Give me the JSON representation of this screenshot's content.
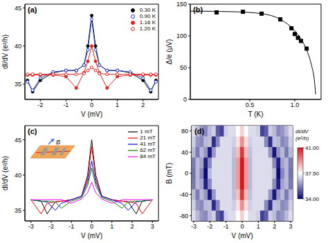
{
  "chart_data": [
    {
      "type": "line",
      "title": "(a)",
      "x_label": "V (mV)",
      "y_label": "dI/dV (e²/h)",
      "x": [
        -2.5,
        -2.3,
        -2,
        -1.5,
        -1,
        -0.6,
        -0.3,
        -0.15,
        0,
        0.15,
        0.3,
        0.6,
        1,
        1.5,
        2,
        2.3,
        2.5
      ],
      "xlim": [
        -2.6,
        2.6
      ],
      "xticks": [
        -2,
        -1,
        0,
        1,
        2
      ],
      "ylim": [
        33,
        45.5
      ],
      "yticks": [
        35,
        40,
        45
      ],
      "legend": "upper right",
      "series": [
        {
          "name": "0.30 K",
          "color": "#000000",
          "marker": "circle",
          "values": [
            35.5,
            34,
            35.5,
            36.5,
            36.8,
            36.8,
            37.5,
            40,
            44,
            40,
            37.5,
            36.8,
            36.8,
            36.5,
            35.5,
            34,
            35.5
          ]
        },
        {
          "name": "0.90 K",
          "color": "#1f3bd1",
          "marker": "circle_open",
          "values": [
            35.3,
            34.2,
            35.8,
            36.6,
            36.8,
            36.8,
            37.5,
            39.5,
            43.5,
            39.5,
            37.5,
            36.8,
            36.8,
            36.6,
            35.8,
            34.2,
            35.3
          ]
        },
        {
          "name": "1.16 K",
          "color": "#e3211c",
          "marker": "circle",
          "values": [
            36.2,
            36.2,
            36.2,
            36.2,
            36,
            34.5,
            36.5,
            38,
            40,
            38,
            36.5,
            34.5,
            36,
            36.2,
            36.2,
            36.2,
            36.2
          ]
        },
        {
          "name": "1.20 K",
          "color": "#e3211c",
          "marker": "circle_open",
          "values": [
            36.3,
            36.3,
            36.3,
            36.3,
            36.3,
            36.3,
            36.4,
            36.8,
            37.2,
            36.8,
            36.4,
            36.3,
            36.3,
            36.3,
            36.3,
            36.3,
            36.3
          ]
        }
      ]
    },
    {
      "type": "scatter",
      "title": "(b)",
      "x_label": "T (K)",
      "y_label": "Δ/e (μV)",
      "log": "x",
      "xlim": [
        0.2,
        1.5
      ],
      "xticks": [
        0.5,
        {
          "value": 1,
          "label": "1.0"
        }
      ],
      "ylim": [
        0,
        150
      ],
      "yticks": [
        0,
        50,
        100,
        150
      ],
      "series": [
        {
          "type": "scatter",
          "marker": "square",
          "color": "#000000",
          "x": [
            0.3,
            0.45,
            0.6,
            0.8,
            0.95,
            1.0,
            1.05,
            1.1,
            1.2
          ],
          "values": [
            137,
            138,
            135,
            126,
            112,
            103,
            97,
            92,
            80
          ]
        },
        {
          "type": "line",
          "line_style": "solid",
          "color": "#000000",
          "x": [
            0.2,
            0.4,
            0.6,
            0.8,
            1.0,
            1.1,
            1.2,
            1.3,
            1.35,
            1.38
          ],
          "values": [
            139,
            138,
            135,
            126,
            108,
            95,
            78,
            52,
            32,
            8
          ]
        }
      ]
    },
    {
      "type": "line",
      "title": "(c)",
      "x_label": "V (mV)",
      "y_label": "dI/dV (e²/h)",
      "annotations": [
        "B"
      ],
      "x": [
        -3,
        -2.5,
        -2.2,
        -1.8,
        -1.5,
        -1,
        -0.5,
        -0.2,
        0,
        0.2,
        0.5,
        1,
        1.5,
        1.8,
        2.2,
        2.5,
        3
      ],
      "xlim": [
        -3.3,
        3.3
      ],
      "xticks": [
        -3,
        -2,
        -1,
        0,
        1,
        2,
        3
      ],
      "ylim": [
        33.5,
        47
      ],
      "yticks": [
        35,
        40,
        45
      ],
      "legend": "upper right",
      "series": [
        {
          "name": "1 mT",
          "color": "#000000",
          "line_style": "solid",
          "values": [
            36.5,
            36.3,
            34.5,
            36.2,
            36.3,
            36.5,
            37,
            40,
            45,
            40,
            37,
            36.5,
            36.3,
            36.2,
            34.5,
            36.3,
            36.5
          ]
        },
        {
          "name": "21 mT",
          "color": "#ff0000",
          "line_style": "solid",
          "values": [
            36.5,
            34.5,
            36,
            36.2,
            36.3,
            36.5,
            37,
            39.5,
            44,
            39.5,
            37,
            36.5,
            36.3,
            36.2,
            36,
            34.5,
            36.5
          ]
        },
        {
          "name": "41 mT",
          "color": "#0000ff",
          "line_style": "solid",
          "values": [
            36.5,
            36.3,
            36.2,
            35,
            36,
            36.5,
            37,
            39,
            42,
            39,
            37,
            36.5,
            36,
            35,
            36.2,
            36.3,
            36.5
          ]
        },
        {
          "name": "62 mT",
          "color": "#008000",
          "line_style": "solid",
          "values": [
            36.5,
            36.3,
            36.3,
            36.2,
            35.3,
            36.3,
            36.8,
            38.5,
            41,
            38.5,
            36.8,
            36.3,
            35.3,
            36.2,
            36.3,
            36.3,
            36.5
          ]
        },
        {
          "name": "84 mT",
          "color": "#ff00ff",
          "line_style": "solid",
          "values": [
            36.5,
            36.5,
            36.5,
            36.5,
            36.5,
            36,
            36.6,
            37.5,
            39,
            37.5,
            36.6,
            36,
            36.5,
            36.5,
            36.5,
            36.5,
            36.5
          ]
        }
      ]
    },
    {
      "type": "heatmap",
      "title": "(d)",
      "x_label": "V (mV)",
      "y_label": "B (mT)",
      "xlim": [
        -3.125,
        3.125
      ],
      "xticks": [
        -3,
        -2,
        -1,
        0,
        1,
        2,
        3
      ],
      "ylim": [
        -90,
        90
      ],
      "yticks": [
        -80,
        -40,
        0,
        40,
        80
      ],
      "x": [
        -3,
        -2.75,
        -2.5,
        -2.25,
        -2,
        -1.75,
        -1.5,
        -1.25,
        -1,
        -0.75,
        -0.5,
        -0.25,
        0,
        0.25,
        0.5,
        0.75,
        1,
        1.25,
        1.5,
        1.75,
        2,
        2.25,
        2.5,
        2.75,
        3
      ],
      "y": [
        -80,
        -60,
        -40,
        -20,
        0,
        20,
        40,
        60,
        80
      ],
      "cells": [
        [
          37,
          36.5,
          36,
          35.8,
          36.5,
          36.8,
          35.2,
          34.8,
          36.8,
          37,
          37,
          37.5,
          38.2,
          37.5,
          37,
          37,
          36.8,
          34.8,
          35.2,
          36.8,
          36.5,
          35.8,
          36,
          36.5,
          37
        ],
        [
          36.8,
          36,
          35.8,
          36.5,
          36.6,
          34.5,
          35.8,
          37,
          37,
          37,
          36.8,
          38,
          39.2,
          38,
          36.8,
          37,
          37,
          37,
          35.8,
          34.5,
          36.6,
          36.5,
          35.8,
          36,
          36.8
        ],
        [
          36.5,
          35.6,
          36.5,
          36,
          34.2,
          36,
          37,
          37,
          37,
          37,
          36.6,
          38.5,
          40.5,
          38.5,
          36.6,
          37,
          37,
          37,
          37,
          36,
          34.2,
          36,
          36.5,
          35.6,
          36.5
        ],
        [
          35.6,
          36.5,
          36.2,
          34.3,
          35.8,
          37,
          37,
          37,
          37,
          37,
          36.5,
          39,
          41.2,
          39,
          36.5,
          37,
          37,
          37,
          37,
          37,
          35.8,
          34.3,
          36.2,
          36.5,
          35.6
        ],
        [
          35.5,
          36.5,
          35.8,
          34,
          36.5,
          37,
          37,
          37,
          37,
          37,
          36.5,
          39,
          41.5,
          39,
          36.5,
          37,
          37,
          37,
          37,
          37,
          36.5,
          34,
          35.8,
          36.5,
          35.5
        ],
        [
          35.6,
          36.5,
          36.2,
          34.3,
          35.8,
          37,
          37,
          37,
          37,
          37,
          36.5,
          39,
          41.2,
          39,
          36.5,
          37,
          37,
          37,
          37,
          37,
          35.8,
          34.3,
          36.2,
          36.5,
          35.6
        ],
        [
          36.5,
          35.6,
          36.5,
          36,
          34.2,
          36,
          37,
          37,
          37,
          37,
          36.6,
          38.5,
          40.5,
          38.5,
          36.6,
          37,
          37,
          37,
          37,
          36,
          34.2,
          36,
          36.5,
          35.6,
          36.5
        ],
        [
          36.8,
          36,
          35.8,
          36.5,
          36.6,
          34.5,
          35.8,
          37,
          37,
          37,
          36.8,
          38,
          39.2,
          38,
          36.8,
          37,
          37,
          37,
          35.8,
          34.5,
          36.6,
          36.5,
          35.8,
          36,
          36.8
        ],
        [
          37,
          36.5,
          36,
          35.8,
          36.5,
          36.8,
          35.2,
          34.8,
          36.8,
          37,
          37,
          37.5,
          38.2,
          37.5,
          37,
          37,
          36.8,
          34.8,
          35.2,
          36.8,
          36.5,
          35.8,
          36,
          36.5,
          37
        ]
      ],
      "colorbar": {
        "label": "dI/dV (e²/h)",
        "range": [
          34,
          41
        ],
        "colors": [
          "#0a0a78",
          "#ffffff",
          "#d7191c"
        ],
        "ticks": [
          {
            "value": 41,
            "label": "41.00"
          },
          {
            "value": 37.5,
            "label": "37.50"
          },
          {
            "value": 34,
            "label": "34.00"
          }
        ]
      }
    }
  ]
}
